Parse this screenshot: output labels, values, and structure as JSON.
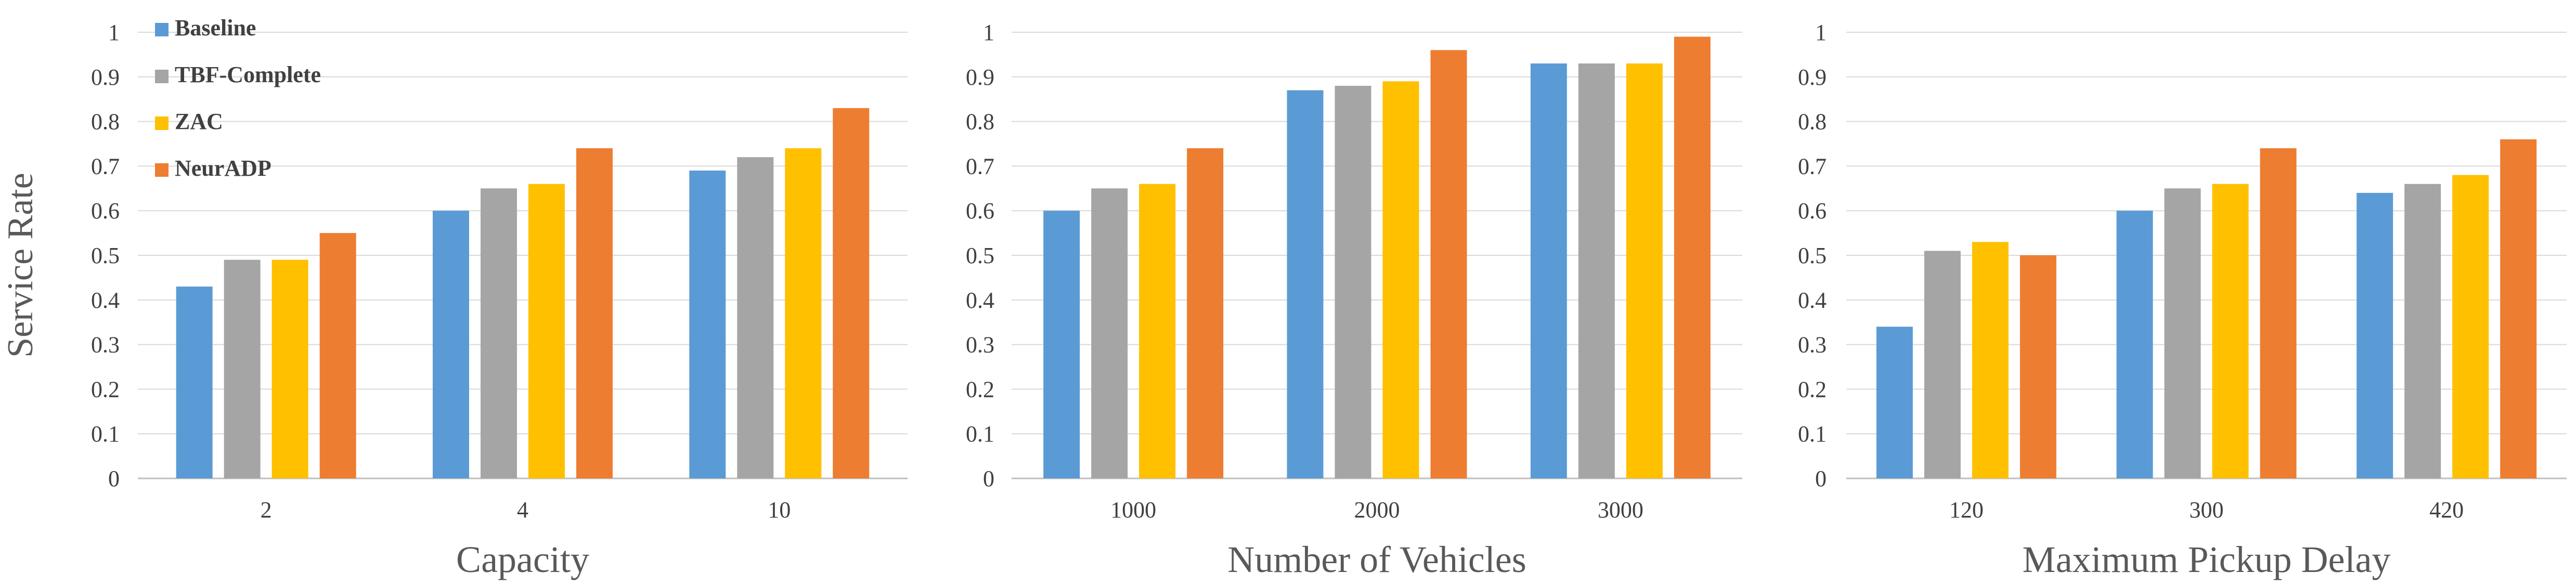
{
  "figure": {
    "y_label": "Service Rate"
  },
  "legend": {
    "entries": [
      {
        "name": "Baseline",
        "color": "#5b9bd5"
      },
      {
        "name": "TBF-Complete",
        "color": "#a5a5a5"
      },
      {
        "name": "ZAC",
        "color": "#ffc000"
      },
      {
        "name": "NeurADP",
        "color": "#ed7d31"
      }
    ],
    "placement": "top-left"
  },
  "chart_data": [
    {
      "type": "bar",
      "title": "",
      "xlabel": "Capacity",
      "ylabel": "Service Rate",
      "ylim": [
        0,
        1
      ],
      "yticks": [
        "0",
        "0.1",
        "0.2",
        "0.3",
        "0.4",
        "0.5",
        "0.6",
        "0.7",
        "0.8",
        "0.9",
        "1"
      ],
      "grid": true,
      "categories": [
        "2",
        "4",
        "10"
      ],
      "series": [
        {
          "name": "Baseline",
          "color": "#5b9bd5",
          "values": [
            0.43,
            0.6,
            0.69
          ]
        },
        {
          "name": "TBF-Complete",
          "color": "#a5a5a5",
          "values": [
            0.49,
            0.65,
            0.72
          ]
        },
        {
          "name": "ZAC",
          "color": "#ffc000",
          "values": [
            0.49,
            0.66,
            0.74
          ]
        },
        {
          "name": "NeurADP",
          "color": "#ed7d31",
          "values": [
            0.55,
            0.74,
            0.83
          ]
        }
      ]
    },
    {
      "type": "bar",
      "title": "",
      "xlabel": "Number of Vehicles",
      "ylabel": "",
      "ylim": [
        0,
        1
      ],
      "yticks": [
        "0",
        "0.1",
        "0.2",
        "0.3",
        "0.4",
        "0.5",
        "0.6",
        "0.7",
        "0.8",
        "0.9",
        "1"
      ],
      "grid": true,
      "categories": [
        "1000",
        "2000",
        "3000"
      ],
      "series": [
        {
          "name": "Baseline",
          "color": "#5b9bd5",
          "values": [
            0.6,
            0.87,
            0.93
          ]
        },
        {
          "name": "TBF-Complete",
          "color": "#a5a5a5",
          "values": [
            0.65,
            0.88,
            0.93
          ]
        },
        {
          "name": "ZAC",
          "color": "#ffc000",
          "values": [
            0.66,
            0.89,
            0.93
          ]
        },
        {
          "name": "NeurADP",
          "color": "#ed7d31",
          "values": [
            0.74,
            0.96,
            0.99
          ]
        }
      ]
    },
    {
      "type": "bar",
      "title": "",
      "xlabel": "Maximum Pickup Delay",
      "ylabel": "",
      "ylim": [
        0,
        1
      ],
      "yticks": [
        "0",
        "0.1",
        "0.2",
        "0.3",
        "0.4",
        "0.5",
        "0.6",
        "0.7",
        "0.8",
        "0.9",
        "1"
      ],
      "grid": true,
      "categories": [
        "120",
        "300",
        "420"
      ],
      "series": [
        {
          "name": "Baseline",
          "color": "#5b9bd5",
          "values": [
            0.34,
            0.6,
            0.64
          ]
        },
        {
          "name": "TBF-Complete",
          "color": "#a5a5a5",
          "values": [
            0.51,
            0.65,
            0.66
          ]
        },
        {
          "name": "ZAC",
          "color": "#ffc000",
          "values": [
            0.53,
            0.66,
            0.68
          ]
        },
        {
          "name": "NeurADP",
          "color": "#ed7d31",
          "values": [
            0.5,
            0.74,
            0.76
          ]
        }
      ]
    }
  ]
}
